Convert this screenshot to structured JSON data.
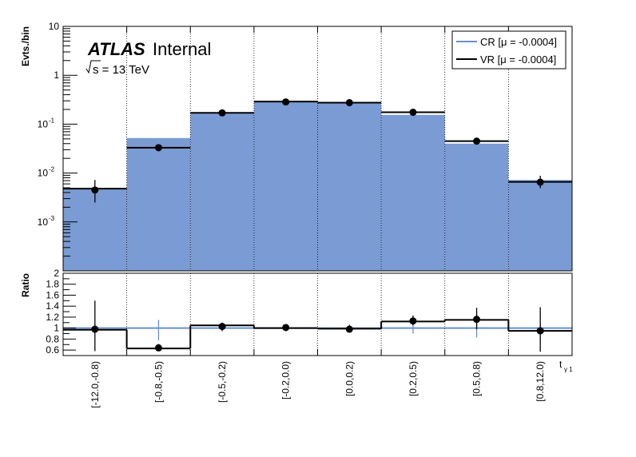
{
  "chart_data": {
    "type": "bar",
    "categories": [
      "[-12.0,-0.8)",
      "[-0.8,-0.5)",
      "[-0.5,-0.2)",
      "[-0.2,0.0)",
      "[0.0,0.2)",
      "[0.2,0.5)",
      "[0.5,0.8)",
      "[0.8,12.0)"
    ],
    "xlabel": "t",
    "xlabel_sub": "γ 1",
    "top_panel": {
      "ylabel": "Evts./bin",
      "yscale": "log",
      "ylim": [
        0.0001,
        10
      ],
      "yticks": [
        {
          "base": "10",
          "exp": "-3"
        },
        {
          "base": "10",
          "exp": "-2"
        },
        {
          "base": "10",
          "exp": "-1"
        },
        {
          "base": "1",
          "exp": ""
        },
        {
          "base": "10",
          "exp": ""
        }
      ],
      "series": [
        {
          "name": "CR [μ = -0.0004]",
          "style": "filled-band",
          "color": "#7a9bd3",
          "legend_color": "#6b8fcf",
          "values": [
            0.0048,
            0.052,
            0.165,
            0.29,
            0.285,
            0.155,
            0.04,
            0.0072
          ]
        },
        {
          "name": "VR [μ = -0.0004]",
          "style": "step-with-points",
          "color": "#000000",
          "values": [
            0.0048,
            0.033,
            0.17,
            0.29,
            0.275,
            0.175,
            0.045,
            0.0066
          ],
          "points": [
            0.0045,
            0.033,
            0.17,
            0.285,
            0.275,
            0.175,
            0.045,
            0.0065
          ],
          "err_low": [
            0.0025,
            0.028,
            0.16,
            0.275,
            0.265,
            0.165,
            0.042,
            0.0049
          ],
          "err_high": [
            0.0072,
            0.038,
            0.18,
            0.295,
            0.285,
            0.185,
            0.048,
            0.0088
          ]
        }
      ]
    },
    "ratio_panel": {
      "ylabel": "Ratio",
      "ylim": [
        0.5,
        2.0
      ],
      "yticks": [
        "0.6",
        "0.8",
        "1",
        "1.2",
        "1.4",
        "1.6",
        "1.8",
        "2"
      ],
      "reference_line": 1.0,
      "reference_color": "#6b8fcf",
      "cr_err_low": [
        1.0,
        0.78,
        0.94,
        0.98,
        0.93,
        0.9,
        0.83,
        0.92
      ],
      "cr_err_high": [
        1.0,
        1.15,
        1.08,
        1.04,
        1.07,
        1.2,
        1.3,
        1.08
      ],
      "step_values": [
        0.97,
        0.63,
        1.05,
        1.0,
        0.99,
        1.12,
        1.15,
        0.95
      ],
      "points": [
        0.98,
        0.64,
        1.03,
        1.01,
        0.98,
        1.13,
        1.16,
        0.95
      ],
      "err_low": [
        0.58,
        0.58,
        0.95,
        0.97,
        0.92,
        1.05,
        0.98,
        0.57
      ],
      "err_high": [
        1.5,
        0.71,
        1.1,
        1.04,
        1.05,
        1.23,
        1.37,
        1.38
      ]
    }
  },
  "atlas": {
    "brand": "ATLAS",
    "tag": "Internal",
    "energy": "s = 13 TeV"
  },
  "legend": {
    "cr": "CR [μ = -0.0004]",
    "vr": "VR [μ = -0.0004]"
  }
}
